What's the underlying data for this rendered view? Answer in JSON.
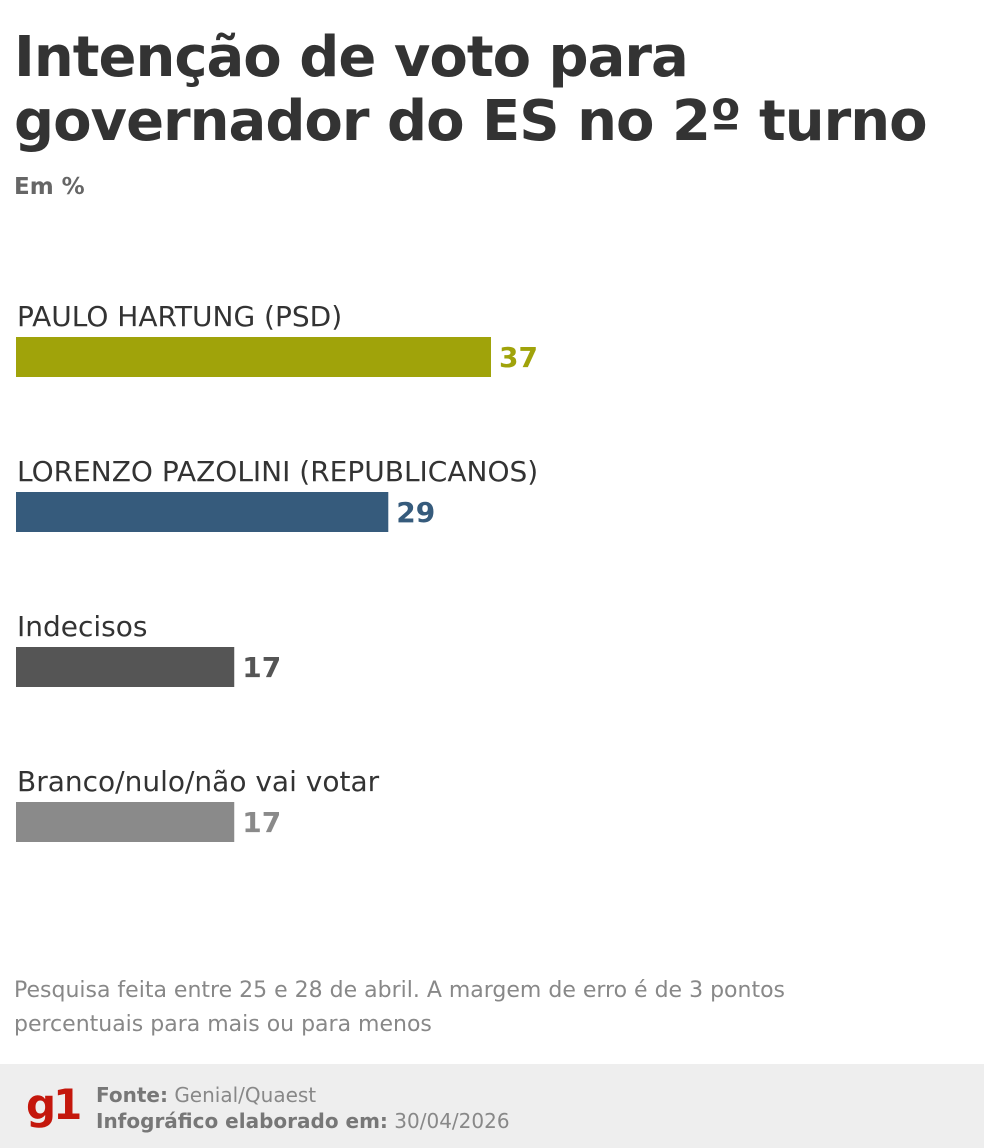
{
  "header": {
    "title": "Intenção de voto para governador do ES no 2º turno",
    "subtitle": "Em %"
  },
  "chart_data": {
    "type": "bar",
    "orientation": "horizontal",
    "categories": [
      "PAULO HARTUNG (PSD)",
      "LORENZO PAZOLINI (REPUBLICANOS)",
      "Indecisos",
      "Branco/nulo/não vai votar"
    ],
    "values": [
      37,
      29,
      17,
      17
    ],
    "colors": [
      "#a0a30a",
      "#365b7c",
      "#555555",
      "#8a8a8a"
    ],
    "xlim": [
      0,
      37
    ],
    "grid": false,
    "legend": "none",
    "data_labels": true
  },
  "note": "Pesquisa feita entre 25 e 28 de abril. A margem de erro é de 3 pontos percentuais para mais ou para menos",
  "footer": {
    "logo": "g1",
    "source_label": "Fonte:",
    "source_value": "Genial/Quaest",
    "credit_label": "Infográfico elaborado em:",
    "credit_value": "30/04/2026"
  }
}
